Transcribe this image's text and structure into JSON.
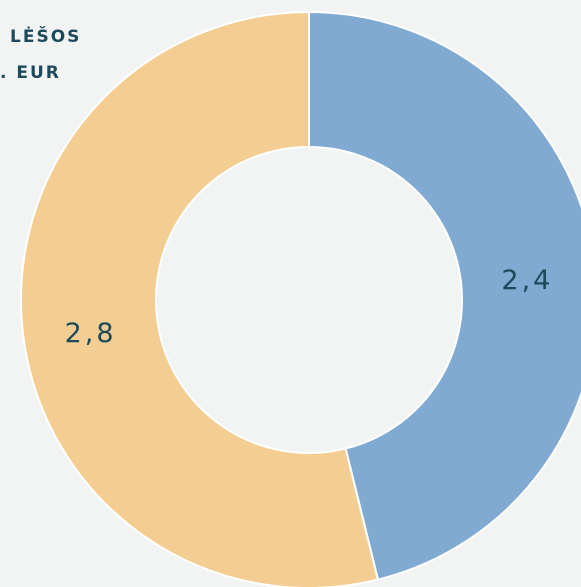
{
  "chart_data": {
    "type": "donut",
    "labels": [
      "LĖŠOS",
      ". EUR"
    ],
    "values": [
      2.4,
      2.8
    ],
    "value_labels": [
      "2,4",
      "2,8"
    ],
    "colors": [
      "#80aad1",
      "#f3cd92"
    ]
  }
}
